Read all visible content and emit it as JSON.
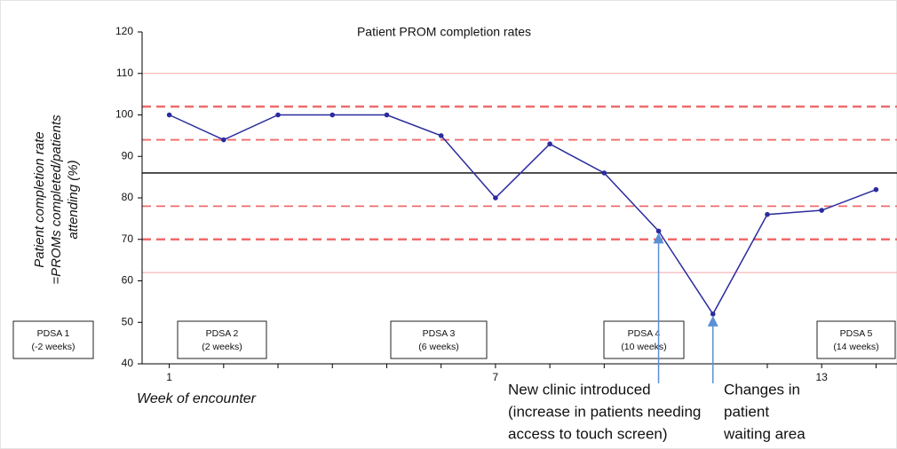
{
  "chart_data": {
    "type": "line",
    "title": "Patient PROM completion rates",
    "y_label": [
      "Patient completion rate",
      "=PROMs completed/patients",
      "attending (%)"
    ],
    "x_label": "Week of encounter",
    "x": [
      1,
      2,
      3,
      4,
      5,
      6,
      7,
      8,
      9,
      10,
      11,
      12,
      13,
      14
    ],
    "series": [
      {
        "color": "#2b2b9e",
        "values": [
          100,
          94,
          100,
          100,
          100,
          95,
          80,
          93,
          86,
          72,
          52,
          76,
          77,
          82
        ]
      }
    ],
    "xlim": [
      0.5,
      14.5
    ],
    "xticks": [
      1,
      7,
      13
    ],
    "ylim": [
      40,
      120
    ],
    "yticks": [
      40,
      50,
      60,
      70,
      80,
      90,
      100,
      110,
      120
    ],
    "reference_lines": [
      {
        "value": 110,
        "color": "#f2a7a7",
        "style": "solid",
        "width": 1
      },
      {
        "value": 102,
        "color": "#ef6b6b",
        "style": "dashed",
        "width": 2.5
      },
      {
        "value": 94,
        "color": "#ef6b6b",
        "style": "dashed",
        "width": 1.8
      },
      {
        "value": 86,
        "color": "#000000",
        "style": "solid",
        "width": 1.3
      },
      {
        "value": 78,
        "color": "#ef6b6b",
        "style": "dashed",
        "width": 1.8
      },
      {
        "value": 70,
        "color": "#ef6b6b",
        "style": "dashed",
        "width": 2.5
      },
      {
        "value": 62,
        "color": "#f2a7a7",
        "style": "solid",
        "width": 1
      }
    ],
    "phases": [
      {
        "label": "PDSA 1",
        "duration": "(-2 weeks)"
      },
      {
        "label": "PDSA 2",
        "duration": "(2 weeks)"
      },
      {
        "label": "PDSA 3",
        "duration": "(6 weeks)"
      },
      {
        "label": "PDSA 4",
        "duration": "(10 weeks)"
      },
      {
        "label": "PDSA 5",
        "duration": "(14 weeks)"
      }
    ],
    "annotations": [
      {
        "lines": [
          "New clinic introduced",
          "(increase in patients needing",
          "access to touch screen)"
        ]
      },
      {
        "lines": [
          "Changes in",
          "patient",
          "waiting area"
        ]
      }
    ]
  }
}
